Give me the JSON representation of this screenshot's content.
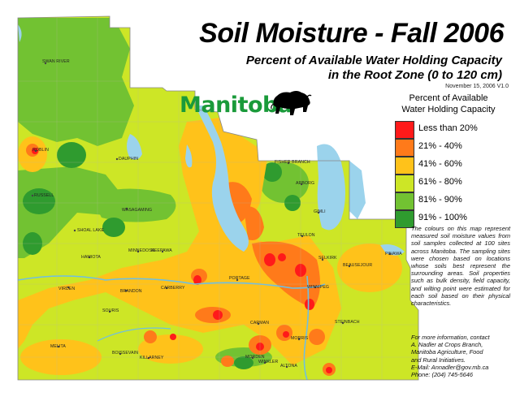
{
  "title": "Soil Moisture - Fall 2006",
  "subtitle_line1": "Percent of Available Water Holding Capacity",
  "subtitle_line2": "in the Root Zone (0 to 120 cm)",
  "date_line": "November 15, 2006   V1.0",
  "logo_text": "Manitoba",
  "legend": {
    "title_line1": "Percent of Available",
    "title_line2": "Water Holding Capacity",
    "items": [
      {
        "label": "Less than 20%",
        "color": "#ff1a1a"
      },
      {
        "label": "21% - 40%",
        "color": "#ff7a1a"
      },
      {
        "label": "41% - 60%",
        "color": "#ffc21a"
      },
      {
        "label": "61% - 80%",
        "color": "#cde626"
      },
      {
        "label": "81% - 90%",
        "color": "#72c232"
      },
      {
        "label": "91% - 100%",
        "color": "#2f9b2f"
      }
    ]
  },
  "note": "The colours on this map represent measured soil moisture values from soil samples collected at 100 sites across Manitoba. The sampling sites were chosen based on locations whose soils best represent the surrounding areas. Soil properties such as bulk density, field capacity, and wilting point were estimated for each soil based on their physical characteristics.",
  "contact": {
    "line1": "For more information, contact",
    "line2": "A. Nadler at Crops Branch,",
    "line3": "Manitoba Agriculture, Food",
    "line4": "and Rural Initiatives.",
    "email": "E-Mail: Annadler@gov.mb.ca",
    "phone": "Phone: (204) 745-5646"
  },
  "colors": {
    "water": "#9bd3ec",
    "map_base": "#cde626",
    "border": "#888888"
  },
  "towns": [
    {
      "name": "SWAN RIVER"
    },
    {
      "name": "ROBLIN"
    },
    {
      "name": "DAUPHIN"
    },
    {
      "name": "RUSSELL"
    },
    {
      "name": "WASAGAMING"
    },
    {
      "name": "SHOAL LAKE"
    },
    {
      "name": "MINNEDOSA"
    },
    {
      "name": "NEEPAWA"
    },
    {
      "name": "HAMIOTA"
    },
    {
      "name": "VIRDEN"
    },
    {
      "name": "BRANDON"
    },
    {
      "name": "CARBERRY"
    },
    {
      "name": "SOURIS"
    },
    {
      "name": "MELITA"
    },
    {
      "name": "BOISSEVAIN"
    },
    {
      "name": "KILLARNEY"
    },
    {
      "name": "PORTAGE"
    },
    {
      "name": "CARMAN"
    },
    {
      "name": "MORDEN"
    },
    {
      "name": "WINKLER"
    },
    {
      "name": "ALTONA"
    },
    {
      "name": "MORRIS"
    },
    {
      "name": "STEINBACH"
    },
    {
      "name": "WINNIPEG"
    },
    {
      "name": "SELKIRK"
    },
    {
      "name": "BEAUSEJOUR"
    },
    {
      "name": "TEULON"
    },
    {
      "name": "GIMLI"
    },
    {
      "name": "ARBORG"
    },
    {
      "name": "FISHER BRANCH"
    },
    {
      "name": "PINAWA"
    }
  ]
}
